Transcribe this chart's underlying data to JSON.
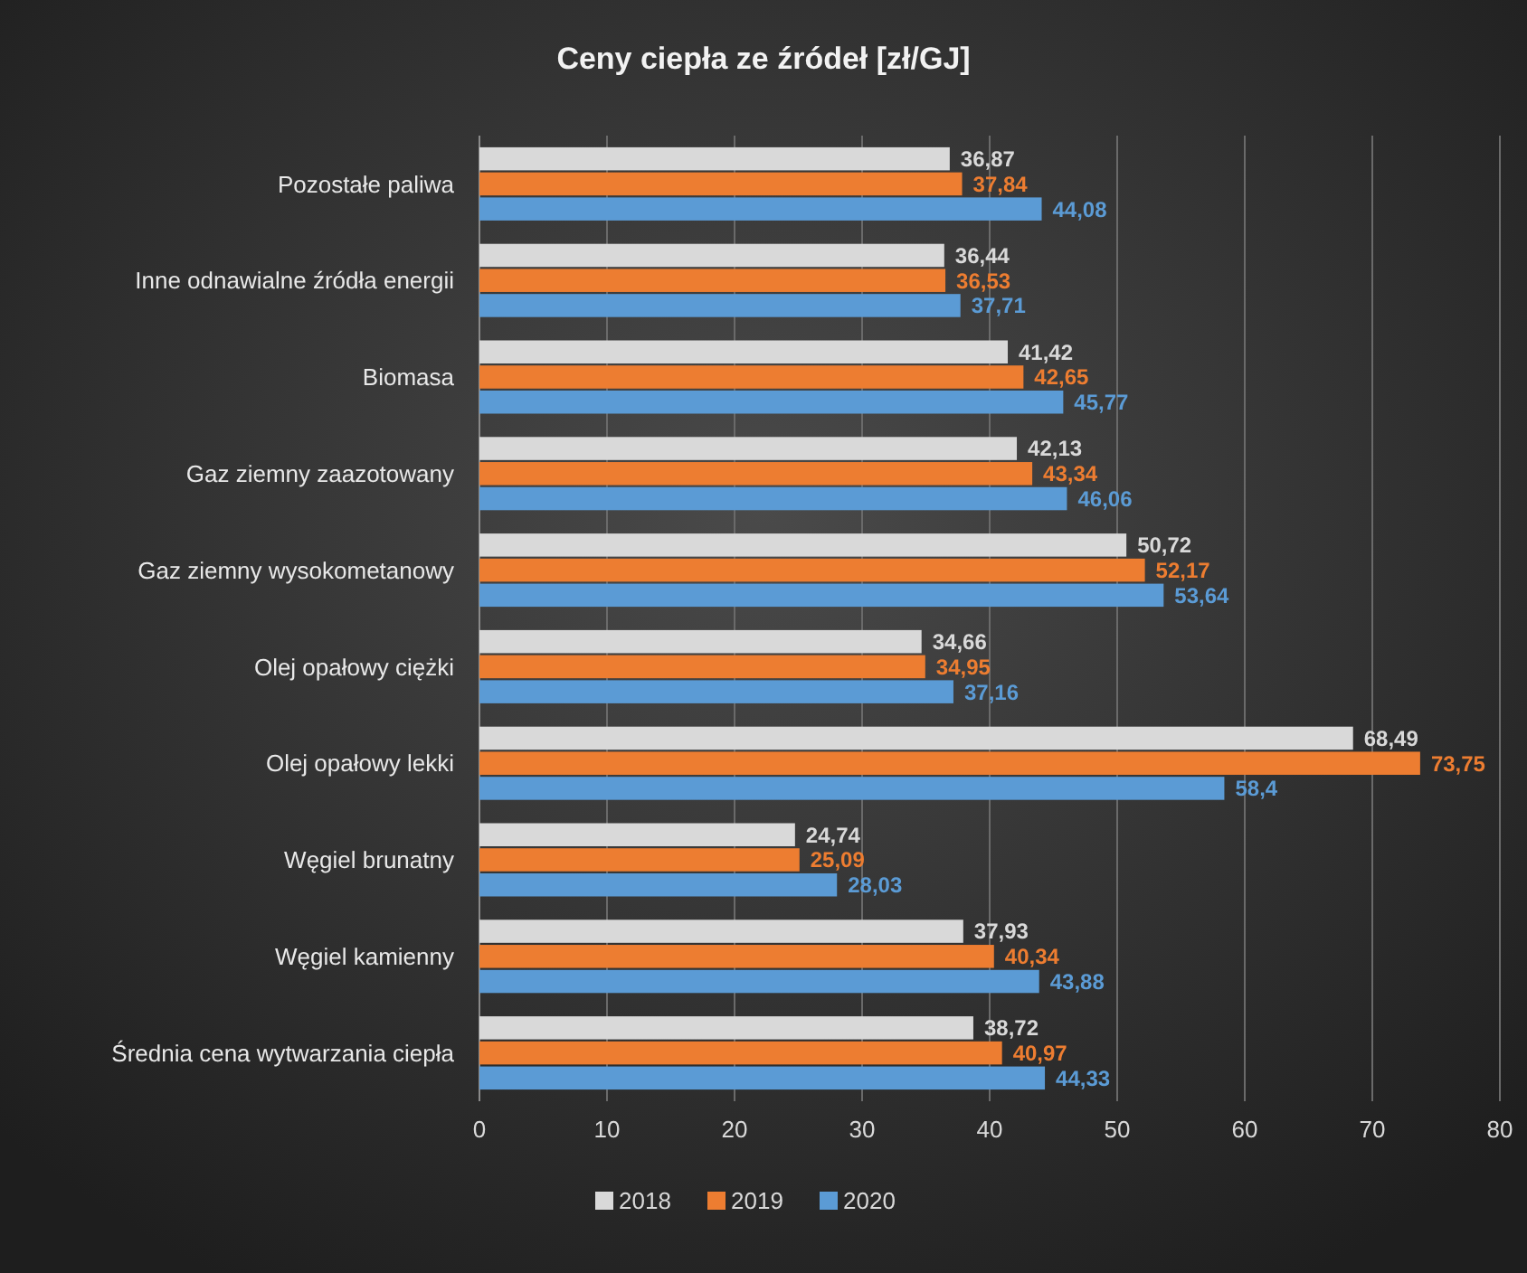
{
  "chart_data": {
    "type": "bar",
    "orientation": "horizontal",
    "title": "Ceny ciepła ze źródeł [zł/GJ]",
    "categories": [
      "Pozostałe paliwa",
      "Inne odnawialne źródła energii",
      "Biomasa",
      "Gaz ziemny zaazotowany",
      "Gaz ziemny wysokometanowy",
      "Olej opałowy ciężki",
      "Olej opałowy lekki",
      "Węgiel brunatny",
      "Węgiel kamienny",
      "Średnia cena wytwarzania ciepła"
    ],
    "series": [
      {
        "name": "2018",
        "color": "#d9d9d9",
        "values": [
          36.87,
          36.44,
          41.42,
          42.13,
          50.72,
          34.66,
          68.49,
          24.74,
          37.93,
          38.72
        ],
        "value_labels": [
          "36,87",
          "36,44",
          "41,42",
          "42,13",
          "50,72",
          "34,66",
          "68,49",
          "24,74",
          "37,93",
          "38,72"
        ]
      },
      {
        "name": "2019",
        "color": "#ed7d31",
        "values": [
          37.84,
          36.53,
          42.65,
          43.34,
          52.17,
          34.95,
          73.75,
          25.09,
          40.34,
          40.97
        ],
        "value_labels": [
          "37,84",
          "36,53",
          "42,65",
          "43,34",
          "52,17",
          "34,95",
          "73,75",
          "25,09",
          "40,34",
          "40,97"
        ]
      },
      {
        "name": "2020",
        "color": "#5b9bd5",
        "values": [
          44.08,
          37.71,
          45.77,
          46.06,
          53.64,
          37.16,
          58.4,
          28.03,
          43.88,
          44.33
        ],
        "value_labels": [
          "44,08",
          "37,71",
          "45,77",
          "46,06",
          "53,64",
          "37,16",
          "58,4",
          "28,03",
          "43,88",
          "44,33"
        ]
      }
    ],
    "xlim": [
      0,
      80
    ],
    "xticks": [
      0,
      10,
      20,
      30,
      40,
      50,
      60,
      70,
      80
    ],
    "grid": "x",
    "legend": "bottom"
  }
}
